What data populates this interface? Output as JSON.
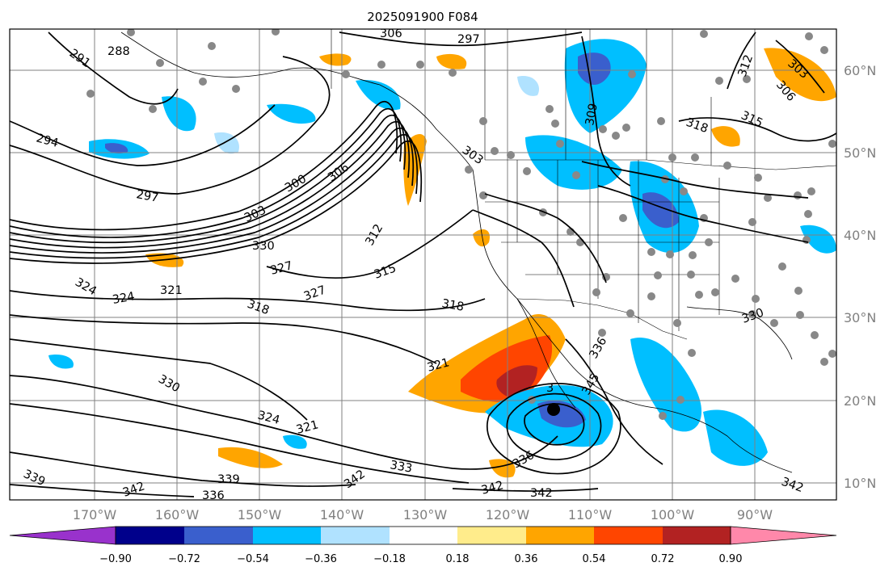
{
  "title": "2025091900 F084",
  "map": {
    "lon_labels": [
      "170°W",
      "160°W",
      "150°W",
      "140°W",
      "130°W",
      "120°W",
      "110°W",
      "100°W",
      "90°W"
    ],
    "lat_labels": [
      "60°N",
      "50°N",
      "40°N",
      "30°N",
      "20°N",
      "10°N"
    ],
    "colors": {
      "grid": "#808080",
      "contour": "#000000",
      "station_dot": "#888888"
    }
  },
  "contour_labels": [
    {
      "key": "c306a",
      "text": "306"
    },
    {
      "key": "c297a",
      "text": "297"
    },
    {
      "key": "c291",
      "text": "291"
    },
    {
      "key": "c288",
      "text": "288"
    },
    {
      "key": "c294",
      "text": "294"
    },
    {
      "key": "c297b",
      "text": "297"
    },
    {
      "key": "c300",
      "text": "300"
    },
    {
      "key": "c306b",
      "text": "306"
    },
    {
      "key": "c303a",
      "text": "303"
    },
    {
      "key": "c330a",
      "text": "330"
    },
    {
      "key": "c327a",
      "text": "327"
    },
    {
      "key": "c327b",
      "text": "327"
    },
    {
      "key": "c312a",
      "text": "312"
    },
    {
      "key": "c315a",
      "text": "315"
    },
    {
      "key": "c318a",
      "text": "318"
    },
    {
      "key": "c318b",
      "text": "318"
    },
    {
      "key": "c324a",
      "text": "324"
    },
    {
      "key": "c324b",
      "text": "324"
    },
    {
      "key": "c321a",
      "text": "321"
    },
    {
      "key": "c321b",
      "text": "321"
    },
    {
      "key": "c330b",
      "text": "330"
    },
    {
      "key": "c324c",
      "text": "324"
    },
    {
      "key": "c321c",
      "text": "321"
    },
    {
      "key": "c333",
      "text": "333"
    },
    {
      "key": "c339a",
      "text": "339"
    },
    {
      "key": "c339b",
      "text": "339"
    },
    {
      "key": "c336a",
      "text": "336"
    },
    {
      "key": "c342a",
      "text": "342"
    },
    {
      "key": "c342b",
      "text": "342"
    },
    {
      "key": "c342c",
      "text": "342"
    },
    {
      "key": "c342d",
      "text": "342"
    },
    {
      "key": "c336b",
      "text": "336"
    },
    {
      "key": "c309",
      "text": "309"
    },
    {
      "key": "c303b",
      "text": "303"
    },
    {
      "key": "c318c",
      "text": "318"
    },
    {
      "key": "c315b",
      "text": "315"
    },
    {
      "key": "c312b",
      "text": "312"
    },
    {
      "key": "c303c",
      "text": "303"
    },
    {
      "key": "c306c",
      "text": "306"
    },
    {
      "key": "c345",
      "text": "345"
    },
    {
      "key": "c336c",
      "text": "336"
    },
    {
      "key": "c342e",
      "text": "342"
    },
    {
      "key": "c330c",
      "text": "330"
    },
    {
      "key": "c3",
      "text": "3"
    }
  ],
  "colorbar": {
    "levels": [
      "−0.90",
      "−0.72",
      "−0.54",
      "−0.36",
      "−0.18",
      "0.18",
      "0.36",
      "0.54",
      "0.72",
      "0.90"
    ],
    "colors": [
      "#9932cc",
      "#00008b",
      "#3a5fcd",
      "#00bfff",
      "#b0e2ff",
      "#ffffff",
      "#ffec8b",
      "#ffa500",
      "#ff4500",
      "#b22222",
      "#ff88aa"
    ]
  }
}
